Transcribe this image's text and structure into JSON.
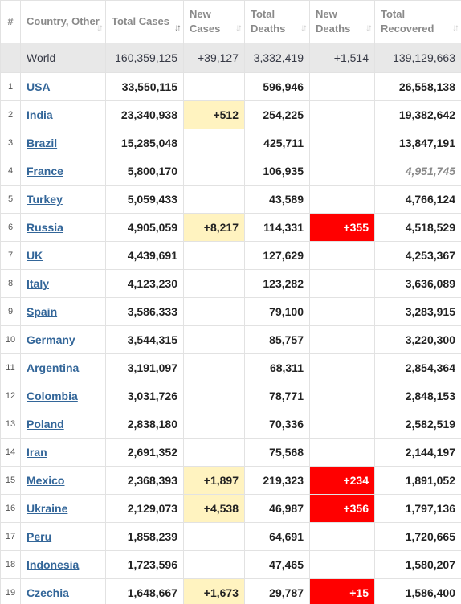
{
  "colors": {
    "new_cases_bg": "#fff3c0",
    "new_deaths_bg": "#ff0000",
    "country_link": "#336699",
    "world_row_bg": "#e8e8e8",
    "header_text": "#8a8a8a"
  },
  "headers": {
    "num": "#",
    "country": "Country, Other",
    "total_cases": "Total Cases",
    "new_cases": "New Cases",
    "total_deaths": "Total Deaths",
    "new_deaths": "New Deaths",
    "total_recovered": "Total Recovered",
    "sort_icon": "↓↑",
    "sort_icon_active": "↓↑"
  },
  "world": {
    "label": "World",
    "total_cases": "160,359,125",
    "new_cases": "+39,127",
    "total_deaths": "3,332,419",
    "new_deaths": "+1,514",
    "total_recovered": "139,129,663"
  },
  "rows": [
    {
      "num": "1",
      "country": "USA",
      "total_cases": "33,550,115",
      "new_cases": "",
      "total_deaths": "596,946",
      "new_deaths": "",
      "total_recovered": "26,558,138",
      "recovered_italic": false
    },
    {
      "num": "2",
      "country": "India",
      "total_cases": "23,340,938",
      "new_cases": "+512",
      "total_deaths": "254,225",
      "new_deaths": "",
      "total_recovered": "19,382,642",
      "recovered_italic": false
    },
    {
      "num": "3",
      "country": "Brazil",
      "total_cases": "15,285,048",
      "new_cases": "",
      "total_deaths": "425,711",
      "new_deaths": "",
      "total_recovered": "13,847,191",
      "recovered_italic": false
    },
    {
      "num": "4",
      "country": "France",
      "total_cases": "5,800,170",
      "new_cases": "",
      "total_deaths": "106,935",
      "new_deaths": "",
      "total_recovered": "4,951,745",
      "recovered_italic": true
    },
    {
      "num": "5",
      "country": "Turkey",
      "total_cases": "5,059,433",
      "new_cases": "",
      "total_deaths": "43,589",
      "new_deaths": "",
      "total_recovered": "4,766,124",
      "recovered_italic": false
    },
    {
      "num": "6",
      "country": "Russia",
      "total_cases": "4,905,059",
      "new_cases": "+8,217",
      "total_deaths": "114,331",
      "new_deaths": "+355",
      "total_recovered": "4,518,529",
      "recovered_italic": false
    },
    {
      "num": "7",
      "country": "UK",
      "total_cases": "4,439,691",
      "new_cases": "",
      "total_deaths": "127,629",
      "new_deaths": "",
      "total_recovered": "4,253,367",
      "recovered_italic": false
    },
    {
      "num": "8",
      "country": "Italy",
      "total_cases": "4,123,230",
      "new_cases": "",
      "total_deaths": "123,282",
      "new_deaths": "",
      "total_recovered": "3,636,089",
      "recovered_italic": false
    },
    {
      "num": "9",
      "country": "Spain",
      "total_cases": "3,586,333",
      "new_cases": "",
      "total_deaths": "79,100",
      "new_deaths": "",
      "total_recovered": "3,283,915",
      "recovered_italic": false
    },
    {
      "num": "10",
      "country": "Germany",
      "total_cases": "3,544,315",
      "new_cases": "",
      "total_deaths": "85,757",
      "new_deaths": "",
      "total_recovered": "3,220,300",
      "recovered_italic": false
    },
    {
      "num": "11",
      "country": "Argentina",
      "total_cases": "3,191,097",
      "new_cases": "",
      "total_deaths": "68,311",
      "new_deaths": "",
      "total_recovered": "2,854,364",
      "recovered_italic": false
    },
    {
      "num": "12",
      "country": "Colombia",
      "total_cases": "3,031,726",
      "new_cases": "",
      "total_deaths": "78,771",
      "new_deaths": "",
      "total_recovered": "2,848,153",
      "recovered_italic": false
    },
    {
      "num": "13",
      "country": "Poland",
      "total_cases": "2,838,180",
      "new_cases": "",
      "total_deaths": "70,336",
      "new_deaths": "",
      "total_recovered": "2,582,519",
      "recovered_italic": false
    },
    {
      "num": "14",
      "country": "Iran",
      "total_cases": "2,691,352",
      "new_cases": "",
      "total_deaths": "75,568",
      "new_deaths": "",
      "total_recovered": "2,144,197",
      "recovered_italic": false
    },
    {
      "num": "15",
      "country": "Mexico",
      "total_cases": "2,368,393",
      "new_cases": "+1,897",
      "total_deaths": "219,323",
      "new_deaths": "+234",
      "total_recovered": "1,891,052",
      "recovered_italic": false
    },
    {
      "num": "16",
      "country": "Ukraine",
      "total_cases": "2,129,073",
      "new_cases": "+4,538",
      "total_deaths": "46,987",
      "new_deaths": "+356",
      "total_recovered": "1,797,136",
      "recovered_italic": false
    },
    {
      "num": "17",
      "country": "Peru",
      "total_cases": "1,858,239",
      "new_cases": "",
      "total_deaths": "64,691",
      "new_deaths": "",
      "total_recovered": "1,720,665",
      "recovered_italic": false
    },
    {
      "num": "18",
      "country": "Indonesia",
      "total_cases": "1,723,596",
      "new_cases": "",
      "total_deaths": "47,465",
      "new_deaths": "",
      "total_recovered": "1,580,207",
      "recovered_italic": false
    },
    {
      "num": "19",
      "country": "Czechia",
      "total_cases": "1,648,667",
      "new_cases": "+1,673",
      "total_deaths": "29,787",
      "new_deaths": "+15",
      "total_recovered": "1,586,400",
      "recovered_italic": false
    }
  ]
}
